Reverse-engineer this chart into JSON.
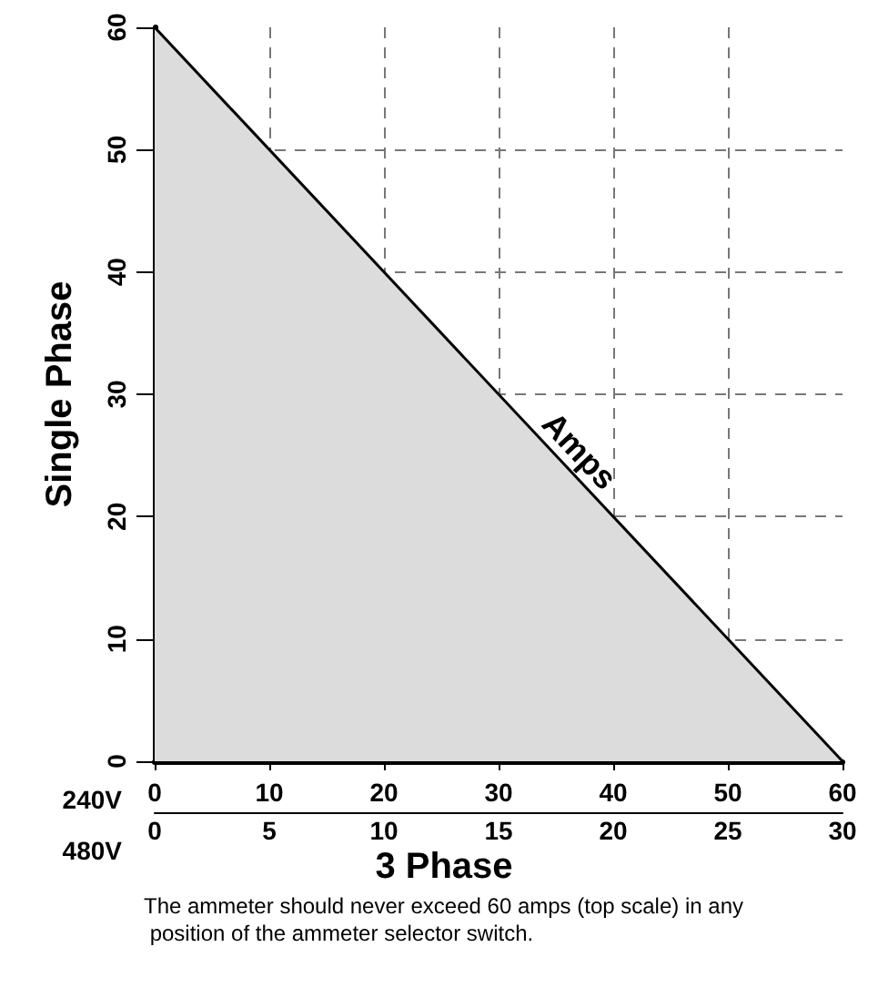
{
  "chart_data": {
    "type": "area",
    "xlabel": "3 Phase",
    "ylabel": "Single Phase",
    "x": [
      0,
      60
    ],
    "series": [
      {
        "color": "#dcdcdc",
        "values": [
          60,
          0
        ]
      }
    ],
    "xlim": [
      0,
      60
    ],
    "xticks": [
      0,
      10,
      20,
      30,
      40,
      50,
      60
    ],
    "x2lim": [
      0,
      30
    ],
    "x2ticks": [
      0,
      5,
      10,
      15,
      20,
      25,
      30
    ],
    "ylim": [
      0,
      60
    ],
    "yticks": [
      0,
      10,
      20,
      30,
      40,
      50,
      60
    ],
    "grid": true,
    "line_style": "solid",
    "marker": "none",
    "annotations": [
      "Amps",
      "240V",
      "480V",
      "The ammeter should never exceed 60 amps (top scale) in any position of the ammeter selector switch."
    ]
  }
}
